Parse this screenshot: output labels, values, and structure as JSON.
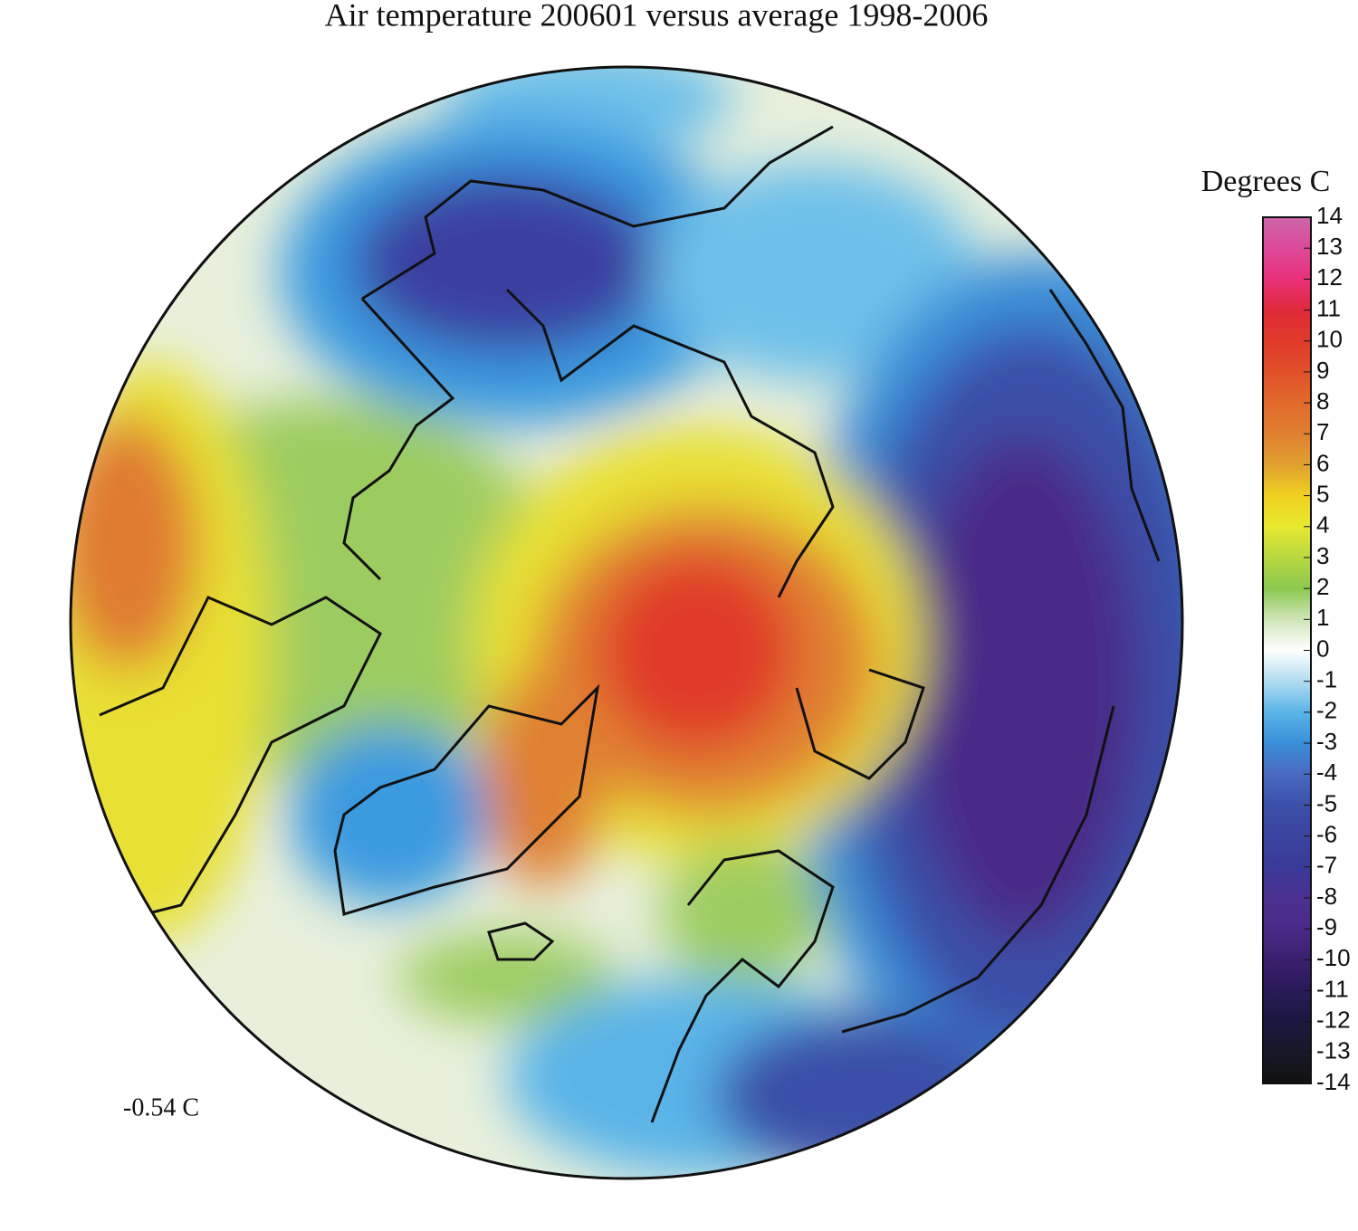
{
  "chart_data": {
    "type": "map",
    "title": "Air temperature 200601 versus average 1998-2006",
    "annotation": "-0.54 C",
    "colorbar": {
      "label": "Degrees C",
      "lim": [
        -14,
        14
      ],
      "ticks": [
        14,
        13,
        12,
        11,
        10,
        9,
        8,
        7,
        6,
        5,
        4,
        3,
        2,
        1,
        0,
        -1,
        -2,
        -3,
        -4,
        -5,
        -6,
        -7,
        -8,
        -9,
        -10,
        -11,
        -12,
        -13,
        -14
      ],
      "colors": [
        "#cc66aa",
        "#dd4a9a",
        "#e8307a",
        "#e02a3a",
        "#e03a2a",
        "#e0502a",
        "#e26a2c",
        "#e08030",
        "#e0a030",
        "#f0d020",
        "#e8e830",
        "#b8d840",
        "#8cc850",
        "#cfe5b8",
        "#ffffff",
        "#b0dcf0",
        "#5ab4e8",
        "#3a8ed8",
        "#4a6ac0",
        "#3a50a8",
        "#3a44a0",
        "#3a3a98",
        "#4a3090",
        "#4a2a88",
        "#3a2070",
        "#2a1a58",
        "#1a1840",
        "#181828",
        "#111111"
      ]
    }
  }
}
